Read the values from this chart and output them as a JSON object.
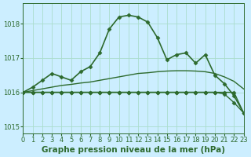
{
  "title": "Graphe pression niveau de la mer (hPa)",
  "background_color": "#cceeff",
  "grid_color": "#aaddcc",
  "line_color": "#2d6a2d",
  "xlim": [
    0,
    23
  ],
  "ylim": [
    1014.8,
    1018.6
  ],
  "yticks": [
    1015,
    1016,
    1017,
    1018
  ],
  "xticks": [
    0,
    1,
    2,
    3,
    4,
    5,
    6,
    7,
    8,
    9,
    10,
    11,
    12,
    13,
    14,
    15,
    16,
    17,
    18,
    19,
    20,
    21,
    22,
    23
  ],
  "series": [
    {
      "y": [
        1016.0,
        1016.15,
        1016.35,
        1016.55,
        1016.45,
        1016.35,
        1016.6,
        1016.75,
        1017.15,
        1017.85,
        1018.2,
        1018.25,
        1018.2,
        1018.05,
        1017.6,
        1016.95,
        1017.1,
        1017.15,
        1016.85,
        1017.1,
        1016.5,
        1016.25,
        1015.9,
        1015.4
      ],
      "marker": true,
      "linewidth": 1.2
    },
    {
      "y": [
        1016.0,
        1016.05,
        1016.1,
        1016.15,
        1016.2,
        1016.23,
        1016.27,
        1016.3,
        1016.35,
        1016.4,
        1016.45,
        1016.5,
        1016.55,
        1016.57,
        1016.6,
        1016.62,
        1016.63,
        1016.63,
        1016.62,
        1016.6,
        1016.55,
        1016.45,
        1016.32,
        1016.1
      ],
      "marker": false,
      "linewidth": 1.0
    },
    {
      "y": [
        1016.0,
        1016.0,
        1016.0,
        1016.0,
        1016.0,
        1016.0,
        1016.0,
        1016.0,
        1016.0,
        1016.0,
        1016.0,
        1016.0,
        1016.0,
        1016.0,
        1016.0,
        1016.0,
        1016.0,
        1016.0,
        1016.0,
        1016.0,
        1016.0,
        1015.95,
        1015.7,
        1015.4
      ],
      "marker": true,
      "linewidth": 1.0
    },
    {
      "y": [
        1016.0,
        1016.0,
        1016.0,
        1016.0,
        1016.0,
        1016.0,
        1016.0,
        1016.0,
        1016.0,
        1016.0,
        1016.0,
        1016.0,
        1016.0,
        1016.0,
        1016.0,
        1016.0,
        1016.0,
        1016.0,
        1016.0,
        1016.0,
        1016.0,
        1016.0,
        1016.0,
        1015.4
      ],
      "marker": true,
      "linewidth": 1.0
    }
  ],
  "marker_style": "D",
  "markersize": 2.5,
  "tick_fontsize": 6,
  "title_fontsize": 7.5
}
